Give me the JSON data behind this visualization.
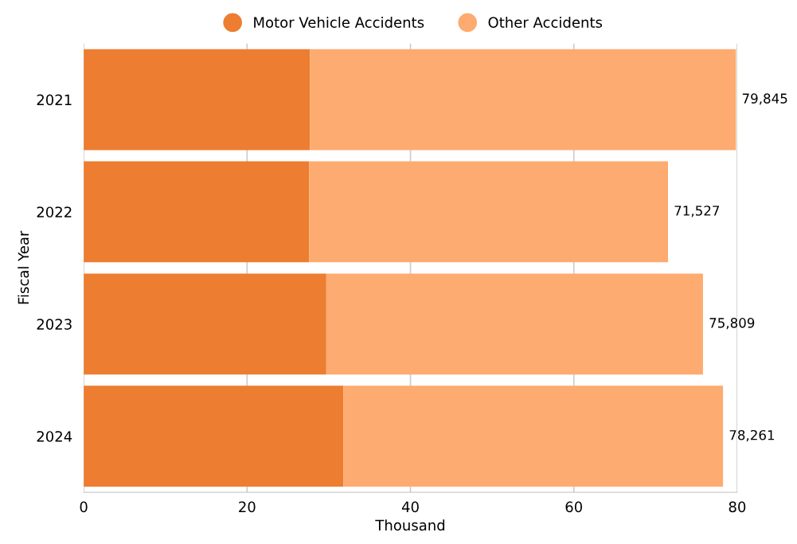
{
  "chart_data": {
    "type": "bar",
    "orientation": "horizontal",
    "stacked": true,
    "xlabel": "Thousand",
    "ylabel": "Fiscal Year",
    "categories": [
      "2021",
      "2022",
      "2023",
      "2024"
    ],
    "series": [
      {
        "name": "Motor Vehicle Accidents",
        "color": "#ed7d31",
        "values": [
          27.7,
          27.6,
          29.7,
          31.8
        ]
      },
      {
        "name": "Other Accidents",
        "color": "#fdab70",
        "values": [
          52.145,
          43.927,
          46.109,
          46.461
        ]
      }
    ],
    "totals": [
      "79,845",
      "71,527",
      "75,809",
      "78,261"
    ],
    "xlim": [
      0,
      80
    ],
    "xticks": [
      0,
      20,
      40,
      60,
      80
    ],
    "grid": "x",
    "legend": "top"
  }
}
